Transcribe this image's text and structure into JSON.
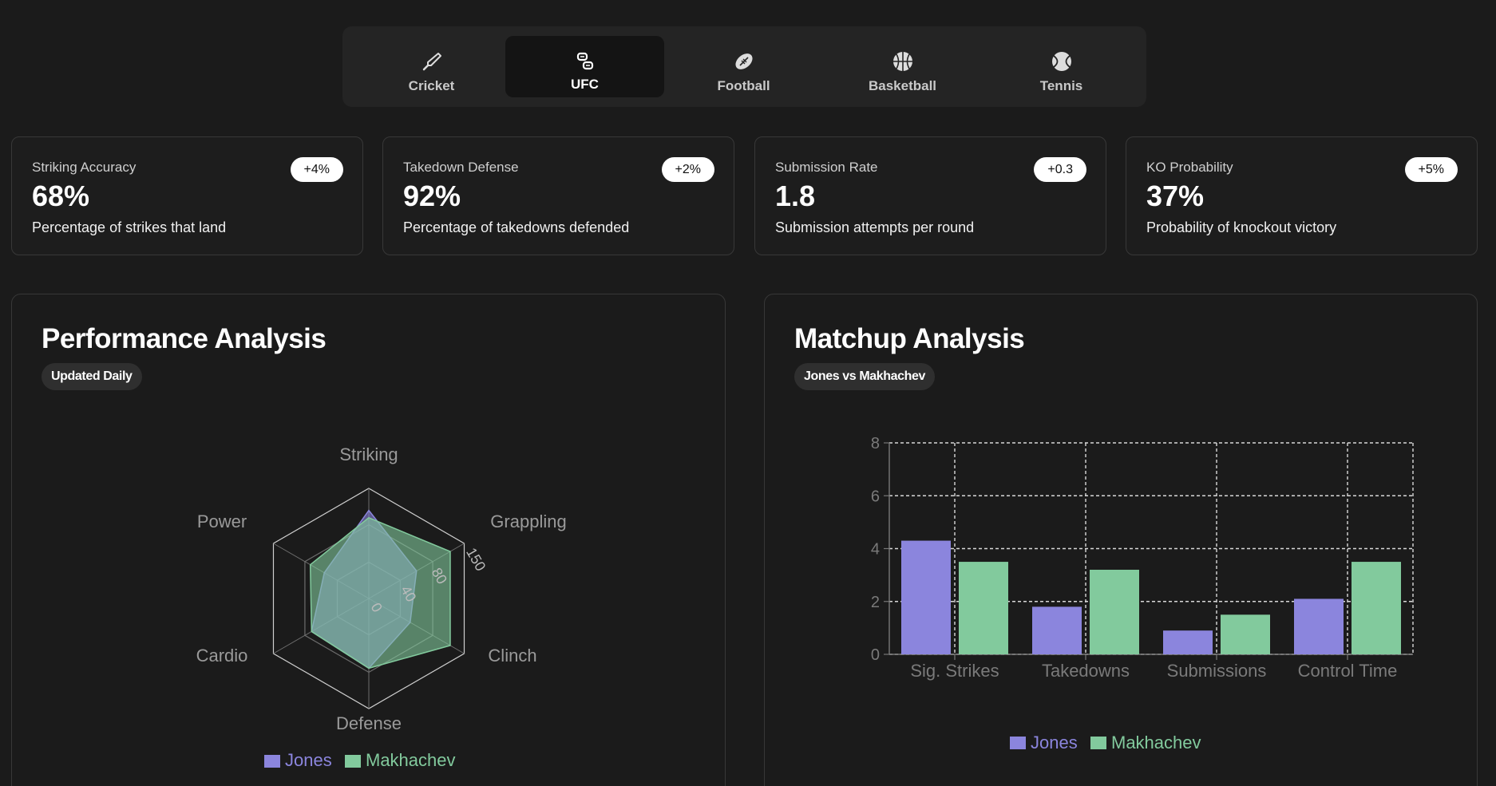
{
  "tabs": [
    {
      "label": "Cricket",
      "icon": "cricket-bat-icon",
      "active": false
    },
    {
      "label": "UFC",
      "icon": "ufc-icon",
      "active": true
    },
    {
      "label": "Football",
      "icon": "football-icon",
      "active": false
    },
    {
      "label": "Basketball",
      "icon": "basketball-icon",
      "active": false
    },
    {
      "label": "Tennis",
      "icon": "tennis-ball-icon",
      "active": false
    }
  ],
  "stats": [
    {
      "title": "Striking Accuracy",
      "value": "68%",
      "description": "Percentage of strikes that land",
      "change": "+4%"
    },
    {
      "title": "Takedown Defense",
      "value": "92%",
      "description": "Percentage of takedowns defended",
      "change": "+2%"
    },
    {
      "title": "Submission Rate",
      "value": "1.8",
      "description": "Submission attempts per round",
      "change": "+0.3"
    },
    {
      "title": "KO Probability",
      "value": "37%",
      "description": "Probability of knockout victory",
      "change": "+5%"
    }
  ],
  "performance": {
    "title": "Performance Analysis",
    "badge": "Updated Daily"
  },
  "matchup": {
    "title": "Matchup Analysis",
    "badge": "Jones vs Makhachev"
  },
  "colors": {
    "jones": "#8b85dd",
    "makhachev": "#82ca9d",
    "background": "#1b1b1b"
  },
  "chart_data": [
    {
      "type": "radar",
      "axes": [
        "Striking",
        "Grappling",
        "Clinch",
        "Defense",
        "Cardio",
        "Power"
      ],
      "ticks": [
        "0",
        "40",
        "80",
        "150"
      ],
      "rmax": 150,
      "series": [
        {
          "name": "Jones",
          "values": [
            120,
            75,
            65,
            95,
            90,
            70
          ]
        },
        {
          "name": "Makhachev",
          "values": [
            110,
            128,
            128,
            95,
            90,
            92
          ]
        }
      ],
      "legend": "bottom"
    },
    {
      "type": "bar",
      "categories": [
        "Sig. Strikes",
        "Takedowns",
        "Submissions",
        "Control Time"
      ],
      "series": [
        {
          "name": "Jones",
          "values": [
            4.3,
            1.8,
            0.9,
            2.1
          ]
        },
        {
          "name": "Makhachev",
          "values": [
            3.5,
            3.2,
            1.5,
            3.5
          ]
        }
      ],
      "ylim": [
        0,
        8
      ],
      "yticks": [
        "0",
        "2",
        "4",
        "6",
        "8"
      ],
      "grid": true,
      "legend": "bottom"
    }
  ]
}
